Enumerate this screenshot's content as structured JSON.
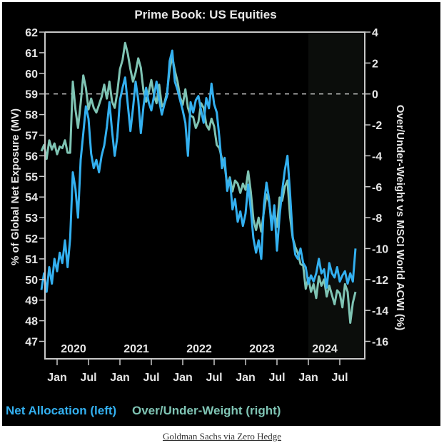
{
  "caption": "Goldman Sachs via Zero Hedge",
  "chart_data": {
    "type": "line",
    "title": "Prime Book: US Equities",
    "ylabel_left": "% of Global Net Exposure (MV)",
    "ylabel_right": "Over/Under-Weight vs MSCI World ACWI (%)",
    "ylim_left": [
      47,
      62
    ],
    "ylim_right": [
      -16,
      4
    ],
    "yticks_left": [
      47,
      48,
      49,
      50,
      51,
      52,
      53,
      54,
      55,
      56,
      57,
      58,
      59,
      60,
      61,
      62
    ],
    "yticks_right": [
      -16,
      -14,
      -12,
      -10,
      -8,
      -6,
      -4,
      -2,
      0,
      2,
      4
    ],
    "x_start": "2019-10",
    "x_end": "2024-10",
    "x_year_labels": [
      "2020",
      "2021",
      "2022",
      "2023",
      "2024"
    ],
    "x_month_ticks": [
      "Jan",
      "Jul",
      "Jan",
      "Jul",
      "Jan",
      "Jul",
      "Jan",
      "Jul",
      "Jan",
      "Jul"
    ],
    "x_month_tick_dates": [
      "2020-01",
      "2020-07",
      "2021-01",
      "2021-07",
      "2022-01",
      "2022-07",
      "2023-01",
      "2023-07",
      "2024-01",
      "2024-07"
    ],
    "reference_line": {
      "axis": "right",
      "value": 0,
      "style": "dashed"
    },
    "shaded_region": {
      "from": "2024-01",
      "to": "2024-10"
    },
    "grid": false,
    "legend": "bottom-left",
    "series": [
      {
        "name": "Net Allocation (left)",
        "axis": "left",
        "color": "#33b0f0",
        "x_months": [
          0,
          0.5,
          1,
          1.5,
          2,
          2.5,
          3,
          3.5,
          4,
          4.5,
          5,
          5.5,
          6,
          6.5,
          7,
          7.5,
          8,
          8.5,
          9,
          9.5,
          10,
          10.5,
          11,
          11.5,
          12,
          12.5,
          13,
          13.5,
          14,
          14.5,
          15,
          15.5,
          16,
          16.5,
          17,
          17.5,
          18,
          18.5,
          19,
          19.5,
          20,
          20.5,
          21,
          21.5,
          22,
          22.5,
          23,
          23.5,
          24,
          24.5,
          25,
          25.5,
          26,
          26.5,
          27,
          27.5,
          28,
          28.5,
          29,
          29.5,
          30,
          30.5,
          31,
          31.5,
          32,
          32.5,
          33,
          33.5,
          34,
          34.5,
          35,
          35.5,
          36,
          36.5,
          37,
          37.5,
          38,
          38.5,
          39,
          39.5,
          40,
          40.5,
          41,
          41.5,
          42,
          42.5,
          43,
          43.5,
          44,
          44.5,
          45,
          45.5,
          46,
          46.5,
          47,
          47.5,
          48,
          48.5,
          49,
          49.5,
          50,
          50.5,
          51,
          51.5,
          52,
          52.5,
          53,
          53.5,
          54,
          54.5,
          55,
          55.5,
          56,
          56.5,
          57,
          57.5,
          58,
          58.5,
          59,
          59.5,
          60
        ],
        "values": [
          49.5,
          50.3,
          49.4,
          50.6,
          49.8,
          51.0,
          50.4,
          51.3,
          50.8,
          51.9,
          50.6,
          52.0,
          55.2,
          54.4,
          53.0,
          55.8,
          57.1,
          58.4,
          57.8,
          56.1,
          55.4,
          55.8,
          55.2,
          56.0,
          56.5,
          57.4,
          58.6,
          57.2,
          56.0,
          56.9,
          58.7,
          59.3,
          59.8,
          58.5,
          57.2,
          58.3,
          59.6,
          58.7,
          57.1,
          58.4,
          59.3,
          58.6,
          58.2,
          58.9,
          59.6,
          58.7,
          58.0,
          58.5,
          58.9,
          60.6,
          61.1,
          59.6,
          59.2,
          58.7,
          58.2,
          57.6,
          56.0,
          58.6,
          58.1,
          58.7,
          58.9,
          58.2,
          57.6,
          58.8,
          58.3,
          59.5,
          58.5,
          58.1,
          56.9,
          55.4,
          55.9,
          54.3,
          54.9,
          53.4,
          53.9,
          52.8,
          53.3,
          52.6,
          53.2,
          54.6,
          53.4,
          52.0,
          51.3,
          51.9,
          51.0,
          53.6,
          54.7,
          53.9,
          52.4,
          53.6,
          51.4,
          53.1,
          54.3,
          55.3,
          56.0,
          54.2,
          52.1,
          51.2,
          51.0,
          51.5,
          50.8,
          50.6,
          49.8,
          50.2,
          49.9,
          50.3,
          51.0,
          50.3,
          50.5,
          49.6,
          50.8,
          50.3,
          50.1,
          50.6,
          49.9,
          50.2,
          50.4,
          49.8,
          50.3,
          49.9,
          51.5
        ]
      },
      {
        "name": "Over/Under-Weight (right)",
        "axis": "right",
        "color": "#7fc4b4",
        "x_months": [
          0,
          0.5,
          1,
          1.5,
          2,
          2.5,
          3,
          3.5,
          4,
          4.5,
          5,
          5.5,
          6,
          6.5,
          7,
          7.5,
          8,
          8.5,
          9,
          9.5,
          10,
          10.5,
          11,
          11.5,
          12,
          12.5,
          13,
          13.5,
          14,
          14.5,
          15,
          15.5,
          16,
          16.5,
          17,
          17.5,
          18,
          18.5,
          19,
          19.5,
          20,
          20.5,
          21,
          21.5,
          22,
          22.5,
          23,
          23.5,
          24,
          24.5,
          25,
          25.5,
          26,
          26.5,
          27,
          27.5,
          28,
          28.5,
          29,
          29.5,
          30,
          30.5,
          31,
          31.5,
          32,
          32.5,
          33,
          33.5,
          34,
          34.5,
          35,
          35.5,
          36,
          36.5,
          37,
          37.5,
          38,
          38.5,
          39,
          39.5,
          40,
          40.5,
          41,
          41.5,
          42,
          42.5,
          43,
          43.5,
          44,
          44.5,
          45,
          45.5,
          46,
          46.5,
          47,
          47.5,
          48,
          48.5,
          49,
          49.5,
          50,
          50.5,
          51,
          51.5,
          52,
          52.5,
          53,
          53.5,
          54,
          54.5,
          55,
          55.5,
          56,
          56.5,
          57,
          57.5,
          58,
          58.5,
          59,
          59.5,
          60
        ],
        "values": [
          -3.7,
          -3.3,
          -4.2,
          -3.0,
          -3.6,
          -3.2,
          -3.9,
          -3.4,
          -3.5,
          -3.0,
          -3.8,
          -3.8,
          0.8,
          -1.0,
          -2.2,
          -0.6,
          1.2,
          0.4,
          -1.0,
          -0.3,
          -0.9,
          -1.2,
          -0.7,
          -0.2,
          0.6,
          -0.3,
          0.8,
          -0.5,
          -0.9,
          0.1,
          1.6,
          2.2,
          3.3,
          2.6,
          1.6,
          0.8,
          1.4,
          2.3,
          1.7,
          0.2,
          -0.5,
          0.1,
          0.9,
          -0.1,
          -0.6,
          0.6,
          -0.8,
          -0.6,
          0.1,
          1.6,
          2.4,
          1.5,
          0.8,
          -0.2,
          -0.7,
          0.3,
          -0.9,
          -1.4,
          -1.5,
          -2.2,
          -1.8,
          -0.6,
          -0.9,
          -2.0,
          -2.3,
          -1.6,
          -2.1,
          -3.3,
          -3.5,
          -4.2,
          -4.6,
          -5.9,
          -5.4,
          -6.3,
          -5.6,
          -5.8,
          -6.4,
          -5.8,
          -6.2,
          -5.0,
          -6.3,
          -8.1,
          -8.8,
          -8.0,
          -8.9,
          -7.6,
          -6.5,
          -7.0,
          -8.3,
          -7.6,
          -8.6,
          -6.7,
          -6.9,
          -6.0,
          -5.6,
          -7.9,
          -9.3,
          -9.9,
          -10.3,
          -11.0,
          -11.1,
          -12.6,
          -11.9,
          -12.8,
          -12.3,
          -13.2,
          -11.8,
          -12.4,
          -12.0,
          -13.1,
          -12.4,
          -13.0,
          -13.6,
          -12.7,
          -12.9,
          -13.8,
          -12.3,
          -12.8,
          -14.8,
          -13.5,
          -12.8
        ]
      }
    ]
  }
}
